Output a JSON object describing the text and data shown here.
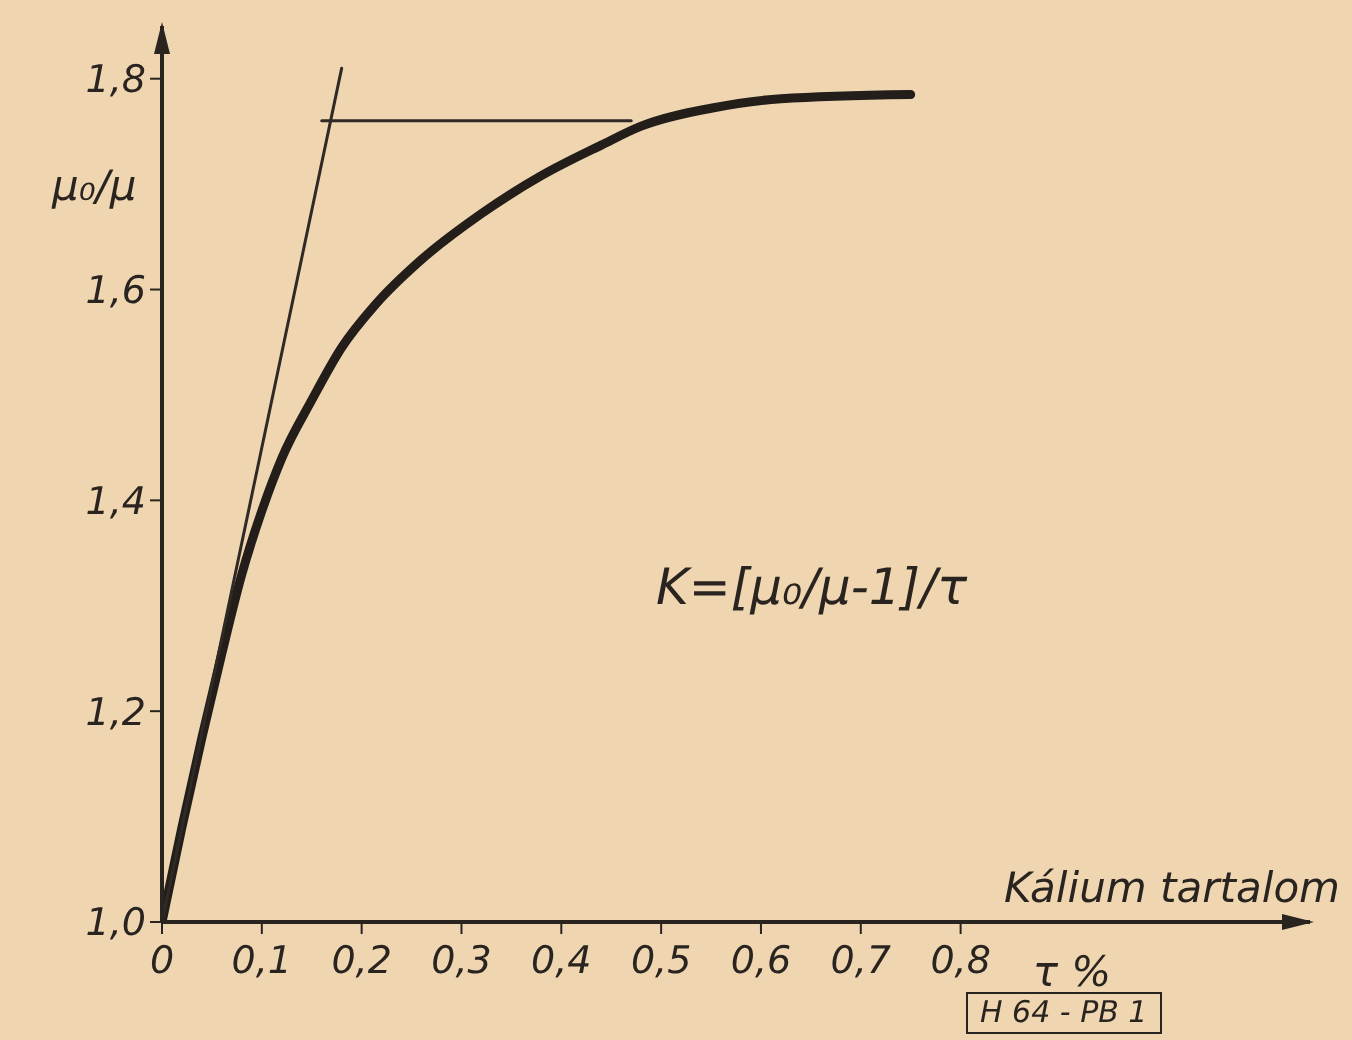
{
  "chart_data": {
    "type": "line",
    "xlabel": "Kálium tartalom",
    "ylabel": "μ₀/μ",
    "annotations": [
      "K=[μ₀/μ-1]/τ",
      "τ %",
      "H 64 - PB 1"
    ],
    "series": [
      {
        "color": "#231e1a",
        "x": [
          0,
          0.02,
          0.04,
          0.06,
          0.08,
          0.1,
          0.12,
          0.15,
          0.18,
          0.215,
          0.257,
          0.32,
          0.38,
          0.44,
          0.48,
          0.55,
          0.62,
          0.75
        ],
        "values": [
          1.0,
          1.09,
          1.175,
          1.255,
          1.33,
          1.39,
          1.44,
          1.495,
          1.545,
          1.587,
          1.626,
          1.672,
          1.708,
          1.737,
          1.755,
          1.772,
          1.781,
          1.785
        ]
      },
      {
        "color": "#2f2a25",
        "x": [
          0,
          0.18
        ],
        "values": [
          1.0,
          1.81
        ]
      },
      {
        "color": "#2f2a25",
        "x": [
          0.16,
          0.47
        ],
        "values": [
          1.76,
          1.76
        ]
      }
    ],
    "xlim": [
      0,
      1.15
    ],
    "ylim": [
      1.0,
      1.85
    ],
    "xticks": [
      0,
      {
        "value": 0.1,
        "label": "0,1"
      },
      {
        "value": 0.2,
        "label": "0,2"
      },
      {
        "value": 0.3,
        "label": "0,3"
      },
      {
        "value": 0.4,
        "label": "0,4"
      },
      {
        "value": 0.5,
        "label": "0,5"
      },
      {
        "value": 0.6,
        "label": "0,6"
      },
      {
        "value": 0.7,
        "label": "0,7"
      },
      {
        "value": 0.8,
        "label": "0,8"
      }
    ],
    "yticks": [
      {
        "value": 1.0,
        "label": "1,0"
      },
      {
        "value": 1.2,
        "label": "1,2"
      },
      {
        "value": 1.4,
        "label": "1,4"
      },
      {
        "value": 1.6,
        "label": "1,6"
      },
      {
        "value": 1.8,
        "label": "1,8"
      }
    ]
  }
}
